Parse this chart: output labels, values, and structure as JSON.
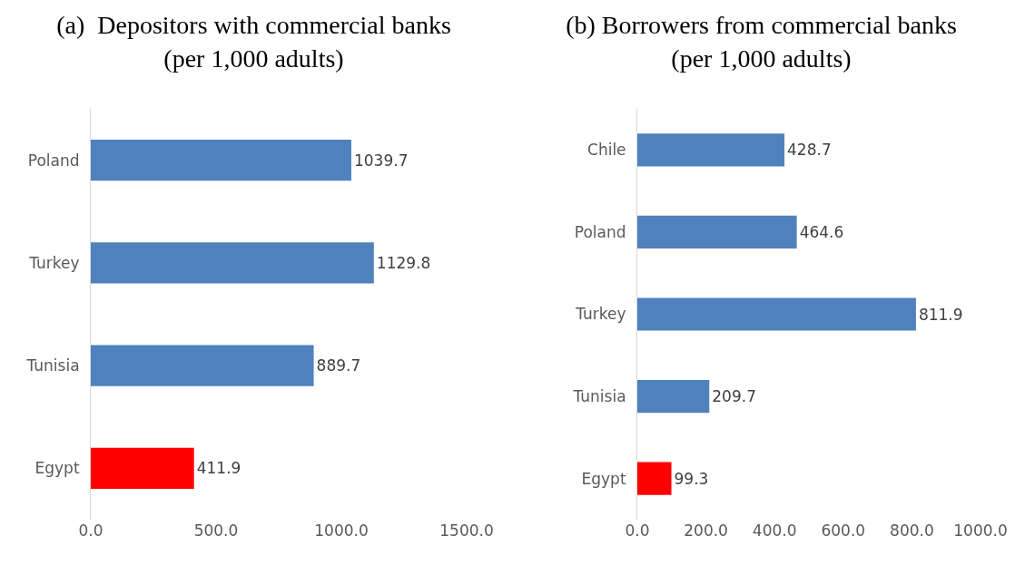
{
  "chart_data": [
    {
      "type": "bar",
      "orientation": "horizontal",
      "title": "(a)  Depositors with commercial banks\n(per 1,000 adults)",
      "categories": [
        "Poland",
        "Turkey",
        "Tunisia",
        "Egypt"
      ],
      "values": [
        1039.7,
        1129.8,
        889.7,
        411.9
      ],
      "colors": [
        "#4f81bd",
        "#4f81bd",
        "#4f81bd",
        "#ff0000"
      ],
      "xlim": [
        0,
        1500
      ],
      "xticks": [
        {
          "value": 0,
          "label": "0.0"
        },
        {
          "value": 500,
          "label": "500.0"
        },
        {
          "value": 1000,
          "label": "1000.0"
        },
        {
          "value": 1500,
          "label": "1500.0"
        }
      ],
      "data_labels": true
    },
    {
      "type": "bar",
      "orientation": "horizontal",
      "title": "(b) Borrowers from commercial banks\n(per 1,000 adults)",
      "categories": [
        "Chile",
        "Poland",
        "Turkey",
        "Tunisia",
        "Egypt"
      ],
      "values": [
        428.7,
        464.6,
        811.9,
        209.7,
        99.3
      ],
      "colors": [
        "#4f81bd",
        "#4f81bd",
        "#4f81bd",
        "#4f81bd",
        "#ff0000"
      ],
      "xlim": [
        0,
        1000
      ],
      "xticks": [
        {
          "value": 0,
          "label": "0.0"
        },
        {
          "value": 200,
          "label": "200.0"
        },
        {
          "value": 400,
          "label": "400.0"
        },
        {
          "value": 600,
          "label": "600.0"
        },
        {
          "value": 800,
          "label": "800.0"
        },
        {
          "value": 1000,
          "label": "1000.0"
        }
      ],
      "data_labels": true
    }
  ]
}
